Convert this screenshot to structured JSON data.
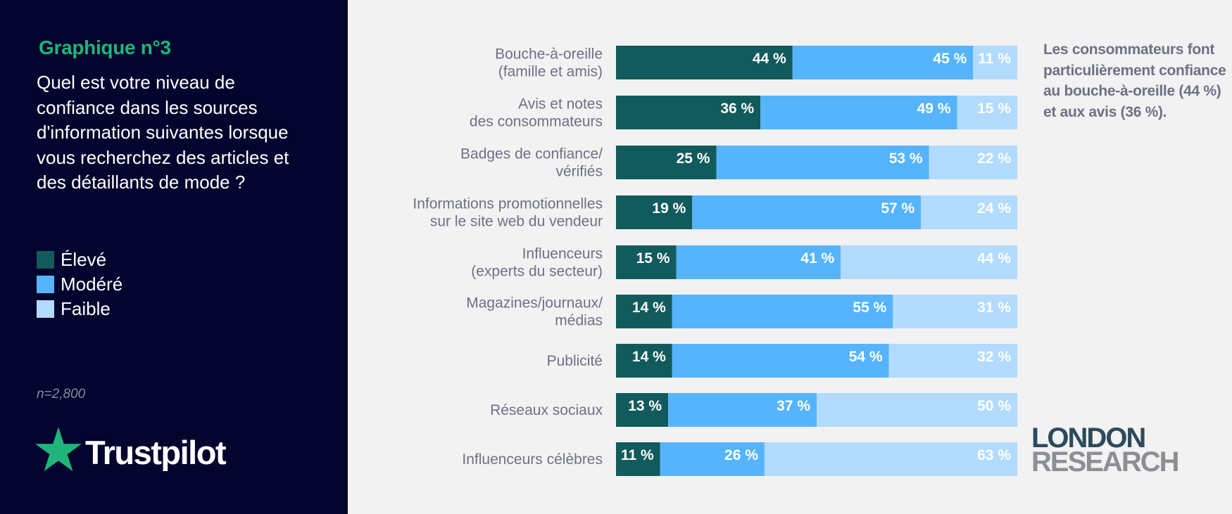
{
  "panel": {
    "graph_label": "Graphique n°3",
    "question": "Quel est votre niveau de confiance dans les sources d'information suivantes lorsque vous recherchez des articles et des détaillants de mode ?",
    "sample_size": "n=2,800",
    "brand": "Trustpilot"
  },
  "legend": [
    {
      "label": "Élevé",
      "color": "#125b5c"
    },
    {
      "label": "Modéré",
      "color": "#56b4fc"
    },
    {
      "label": "Faible",
      "color": "#b2dbfd"
    }
  ],
  "side_note": "Les consommateurs font particulièrement confiance au bouche-à-oreille (44 %) et aux avis (36 %).",
  "london_research": {
    "line1": "LONDON",
    "line2": "RESEARCH"
  },
  "chart_data": {
    "type": "bar",
    "orientation": "horizontal",
    "stacked": true,
    "percent_suffix": " %",
    "categories": [
      [
        "Bouche-à-oreille",
        "(famille et amis)"
      ],
      [
        "Avis et notes",
        "des consommateurs"
      ],
      [
        "Badges de confiance/",
        "vérifiés"
      ],
      [
        "Informations promotionnelles",
        "sur le site web du vendeur"
      ],
      [
        "Influenceurs",
        "(experts du secteur)"
      ],
      [
        "Magazines/journaux/",
        "médias"
      ],
      [
        "Publicité"
      ],
      [
        "Réseaux sociaux"
      ],
      [
        "Influenceurs célèbres"
      ]
    ],
    "series": [
      {
        "name": "Élevé",
        "color": "#125b5c",
        "values": [
          44,
          36,
          25,
          19,
          15,
          14,
          14,
          13,
          11
        ]
      },
      {
        "name": "Modéré",
        "color": "#56b4fc",
        "values": [
          45,
          49,
          53,
          57,
          41,
          55,
          54,
          37,
          26
        ]
      },
      {
        "name": "Faible",
        "color": "#b2dbfd",
        "values": [
          11,
          15,
          22,
          24,
          44,
          31,
          32,
          50,
          63
        ]
      }
    ],
    "xlim": [
      0,
      100
    ],
    "legend": "left-panel",
    "grid": false
  }
}
